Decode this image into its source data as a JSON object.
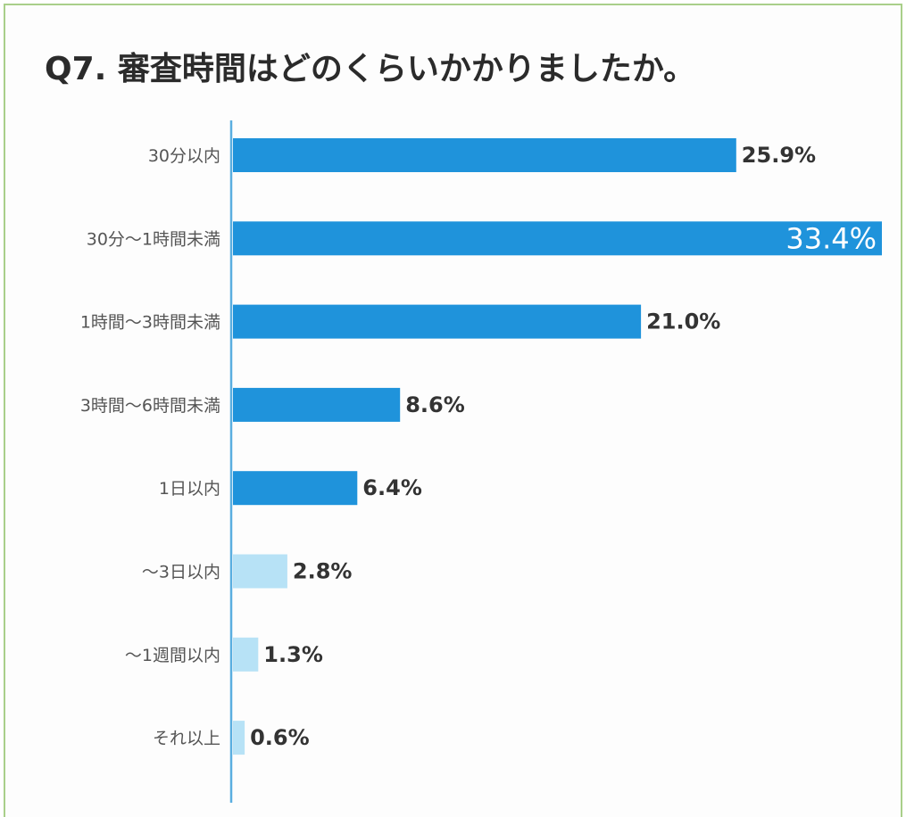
{
  "title": "Q7. 審査時間はどのくらいかかりましたか。",
  "colors": {
    "bar_dark": "#1f93db",
    "bar_light": "#b7e2f6",
    "axis": "#5aaee0",
    "frame": "#a9cf8a",
    "value_text": "#333333",
    "category_text": "#555555"
  },
  "chart_data": {
    "type": "bar",
    "orientation": "horizontal",
    "title": "Q7. 審査時間はどのくらいかかりましたか。",
    "categories": [
      "30分以内",
      "30分～1時間未満",
      "1時間～3時間未満",
      "3時間～6時間未満",
      "1日以内",
      "～3日以内",
      "～1週間以内",
      "それ以上"
    ],
    "values": [
      25.9,
      33.4,
      21.0,
      8.6,
      6.4,
      2.8,
      1.3,
      0.6
    ],
    "value_labels": [
      "25.9%",
      "33.4%",
      "21.0%",
      "8.6%",
      "6.4%",
      "2.8%",
      "1.3%",
      "0.6%"
    ],
    "unit": "%",
    "highlight": [
      true,
      true,
      true,
      true,
      true,
      false,
      false,
      false
    ],
    "xlim": [
      0,
      33.4
    ],
    "grid": false,
    "legend": "none"
  }
}
